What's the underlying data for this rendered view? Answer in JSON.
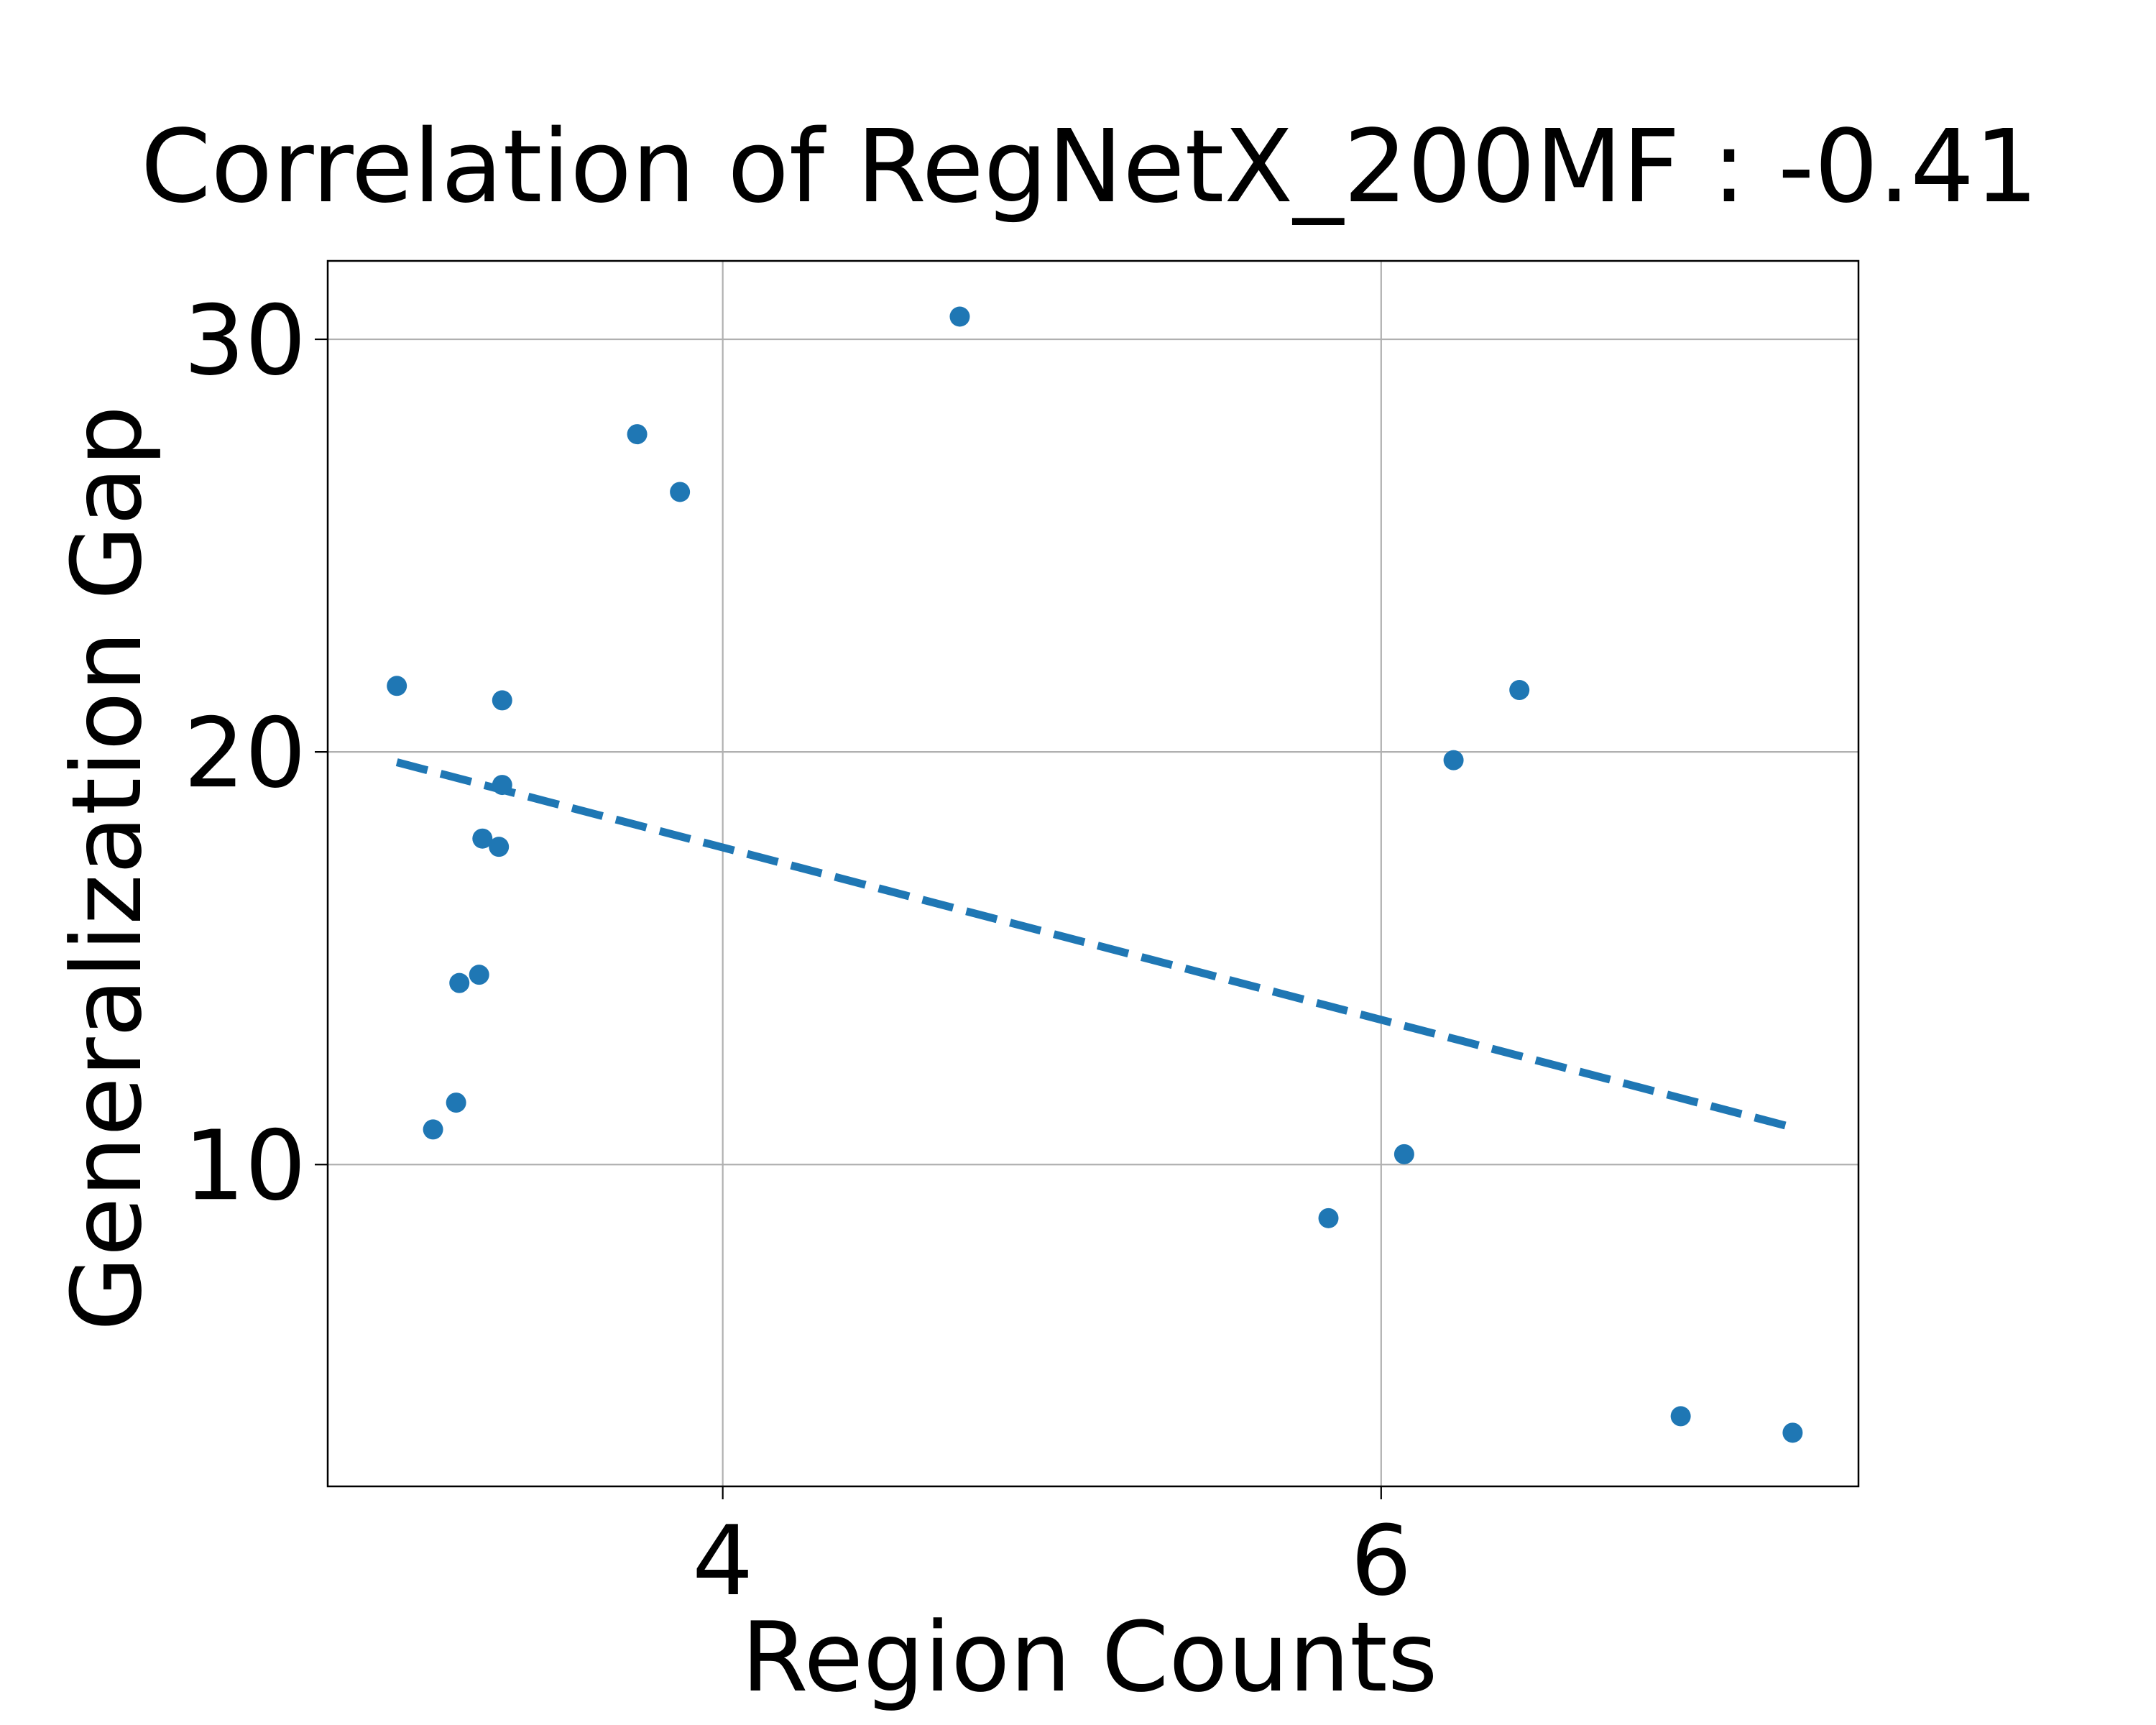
{
  "chart_data": {
    "type": "scatter",
    "title": "Correlation of RegNetX_200MF : -0.41",
    "xlabel": "Region Counts",
    "ylabel": "Generalization Gap",
    "xlim": [
      2.8,
      7.45
    ],
    "ylim": [
      2.2,
      31.9
    ],
    "xticks": [
      4,
      6
    ],
    "xtick_labels": [
      "4",
      "6"
    ],
    "yticks": [
      10,
      20,
      30
    ],
    "ytick_labels": [
      "10",
      "20",
      "30"
    ],
    "grid": true,
    "point_color": "#1f77b4",
    "trend_color": "#1f77b4",
    "series": [
      {
        "points": [
          {
            "x": 3.01,
            "y": 21.6
          },
          {
            "x": 3.12,
            "y": 10.85
          },
          {
            "x": 3.19,
            "y": 11.5
          },
          {
            "x": 3.2,
            "y": 14.4
          },
          {
            "x": 3.26,
            "y": 14.6
          },
          {
            "x": 3.27,
            "y": 17.9
          },
          {
            "x": 3.32,
            "y": 17.7
          },
          {
            "x": 3.33,
            "y": 19.2
          },
          {
            "x": 3.33,
            "y": 21.25
          },
          {
            "x": 3.74,
            "y": 27.7
          },
          {
            "x": 3.87,
            "y": 26.3
          },
          {
            "x": 4.72,
            "y": 30.55
          },
          {
            "x": 5.84,
            "y": 8.7
          },
          {
            "x": 6.07,
            "y": 10.25
          },
          {
            "x": 6.22,
            "y": 19.8
          },
          {
            "x": 6.42,
            "y": 21.5
          },
          {
            "x": 6.91,
            "y": 3.9
          },
          {
            "x": 7.25,
            "y": 3.5
          }
        ]
      }
    ],
    "trend_line": {
      "style": "dashed",
      "x": [
        3.01,
        7.25
      ],
      "y": [
        19.75,
        10.9
      ]
    }
  }
}
